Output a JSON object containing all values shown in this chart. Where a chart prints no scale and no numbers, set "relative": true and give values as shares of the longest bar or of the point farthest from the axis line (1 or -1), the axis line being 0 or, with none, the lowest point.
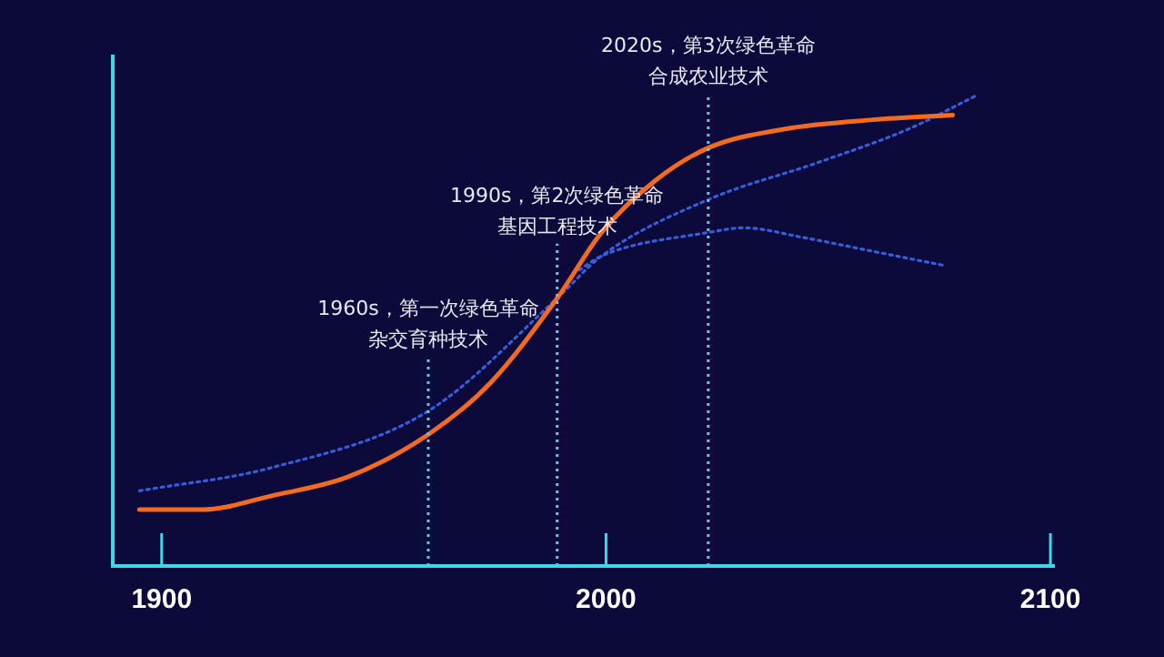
{
  "chart_data": {
    "type": "line",
    "relative": true,
    "xlim": [
      1889,
      2101
    ],
    "xticks": [
      1900,
      2000,
      2100
    ],
    "legend": false,
    "grid": false,
    "marker": "none",
    "series": [
      {
        "color": "#f26b21",
        "line_style": "solid",
        "x": [
          1895,
          1909,
          1925,
          1942,
          1960,
          1974,
          1989,
          1999,
          2011,
          2023,
          2040,
          2060,
          2078
        ],
        "values": [
          0.12,
          0.12,
          0.15,
          0.19,
          0.28,
          0.39,
          0.57,
          0.71,
          0.82,
          0.89,
          0.93,
          0.95,
          0.96
        ]
      },
      {
        "color": "#3a5bd9",
        "line_style": "dotted",
        "x": [
          1895,
          1925,
          1960,
          1989,
          1999,
          2023,
          2048,
          2068,
          2083
        ],
        "values": [
          0.16,
          0.21,
          0.33,
          0.57,
          0.66,
          0.78,
          0.86,
          0.93,
          1
        ]
      },
      {
        "color": "#3a5bd9",
        "line_style": "dotted",
        "x": [
          1994,
          1999,
          2023,
          2031,
          2044,
          2060,
          2076
        ],
        "values": [
          0.63,
          0.66,
          0.71,
          0.72,
          0.7,
          0.67,
          0.64
        ]
      }
    ],
    "ref_lines": [
      {
        "axis": "x",
        "value": 1960,
        "label": "1960s，第一次绿色革命杂交育种技术",
        "color": "#3fd6e8",
        "line_style": "dotted"
      },
      {
        "axis": "x",
        "value": 1989,
        "label": "1990s，第2次绿色革命基因工程技术",
        "color": "#3fd6e8",
        "line_style": "dotted"
      },
      {
        "axis": "x",
        "value": 2023,
        "label": "2020s，第3次绿色革命合成农业技术",
        "color": "#3fd6e8",
        "line_style": "dotted"
      }
    ]
  }
}
